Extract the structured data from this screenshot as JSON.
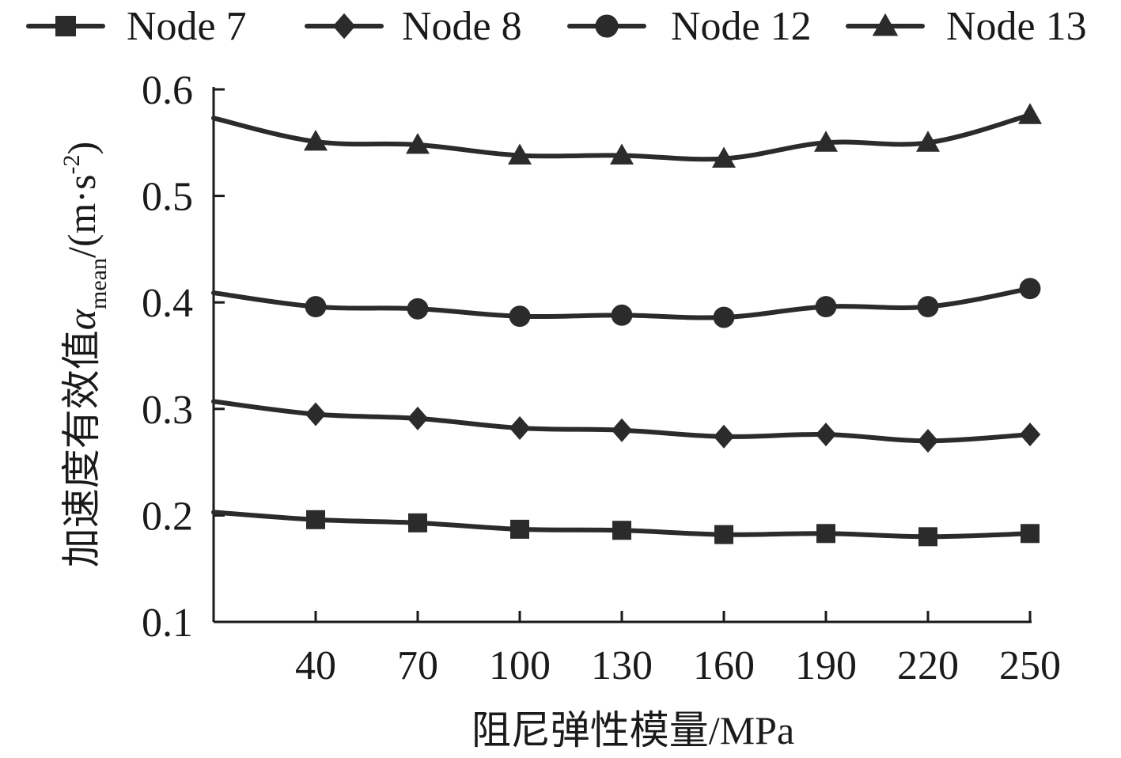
{
  "chart_data": {
    "type": "line",
    "title": "",
    "xlabel": "阻尼弹性模量/MPa",
    "ylabel_main": "加速度有效值",
    "ylabel_symbol": "α",
    "ylabel_subscript": "mean",
    "ylabel_unit_open": "/(m·s",
    "ylabel_unit_exp": "-2",
    "ylabel_unit_close": ")",
    "x": [
      10,
      40,
      70,
      100,
      130,
      160,
      190,
      220,
      250
    ],
    "x_tick_labels": [
      "40",
      "70",
      "100",
      "130",
      "160",
      "190",
      "220",
      "250"
    ],
    "xlim": [
      10,
      250
    ],
    "ylim": [
      0.1,
      0.6
    ],
    "y_ticks": [
      "0.1",
      "0.2",
      "0.3",
      "0.4",
      "0.5",
      "0.6"
    ],
    "legend_position": "top",
    "grid": false,
    "series": [
      {
        "name": "Node 7",
        "marker": "square",
        "values": [
          0.203,
          0.196,
          0.193,
          0.187,
          0.186,
          0.182,
          0.183,
          0.18,
          0.183
        ]
      },
      {
        "name": "Node 8",
        "marker": "diamond",
        "values": [
          0.307,
          0.295,
          0.291,
          0.282,
          0.28,
          0.274,
          0.276,
          0.27,
          0.276
        ]
      },
      {
        "name": "Node 12",
        "marker": "circle",
        "values": [
          0.409,
          0.396,
          0.394,
          0.387,
          0.388,
          0.386,
          0.396,
          0.396,
          0.413
        ]
      },
      {
        "name": "Node 13",
        "marker": "triangle",
        "values": [
          0.573,
          0.551,
          0.548,
          0.538,
          0.538,
          0.535,
          0.55,
          0.55,
          0.576
        ]
      }
    ]
  }
}
